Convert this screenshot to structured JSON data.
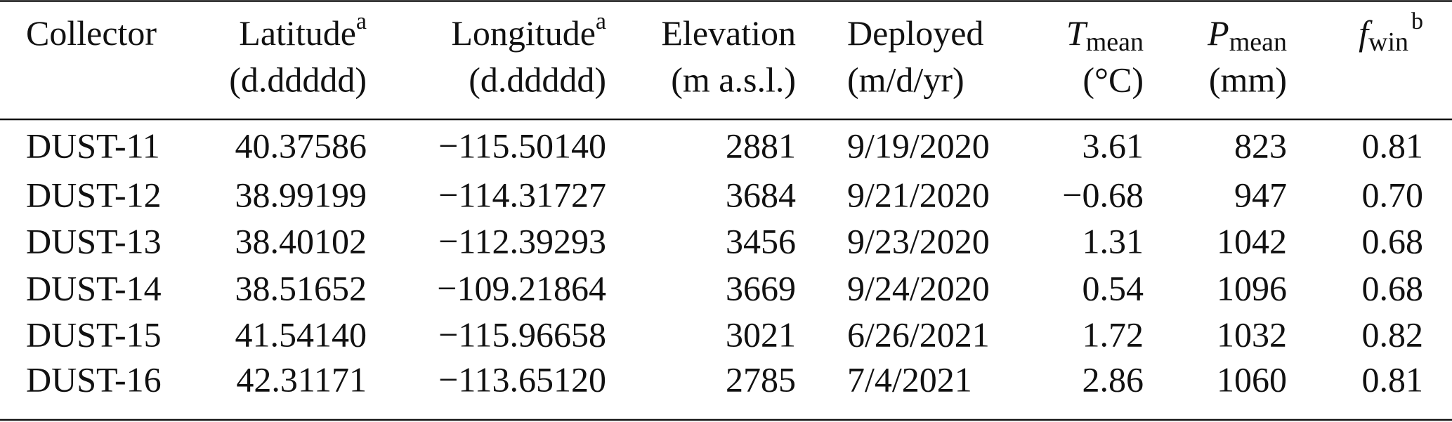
{
  "table": {
    "columns": [
      {
        "label": "Collector"
      },
      {
        "label": "Latitude",
        "sup": "a",
        "unit": "(d.ddddd)"
      },
      {
        "label": "Longitude",
        "sup": "a",
        "unit": "(d.ddddd)"
      },
      {
        "label": "Elevation",
        "unit": "(m a.s.l.)"
      },
      {
        "label": "Deployed",
        "unit": "(m/d/yr)"
      },
      {
        "symbol": "T",
        "sub": "mean",
        "unit": "(°C)"
      },
      {
        "symbol": "P",
        "sub": "mean",
        "unit": "(mm)"
      },
      {
        "symbol": "f",
        "sub": "win",
        "sup": "b"
      }
    ],
    "rows": [
      [
        "DUST-11",
        "40.37586",
        "−115.50140",
        "2881",
        "9/19/2020",
        "3.61",
        "823",
        "0.81"
      ],
      [
        "DUST-12",
        "38.99199",
        "−114.31727",
        "3684",
        "9/21/2020",
        "−0.68",
        "947",
        "0.70"
      ],
      [
        "DUST-13",
        "38.40102",
        "−112.39293",
        "3456",
        "9/23/2020",
        "1.31",
        "1042",
        "0.68"
      ],
      [
        "DUST-14",
        "38.51652",
        "−109.21864",
        "3669",
        "9/24/2020",
        "0.54",
        "1096",
        "0.68"
      ],
      [
        "DUST-15",
        "41.54140",
        "−115.96658",
        "3021",
        "6/26/2021",
        "1.72",
        "1032",
        "0.82"
      ],
      [
        "DUST-16",
        "42.31171",
        "−113.65120",
        "2785",
        "7/4/2021",
        "2.86",
        "1060",
        "0.81"
      ]
    ]
  }
}
